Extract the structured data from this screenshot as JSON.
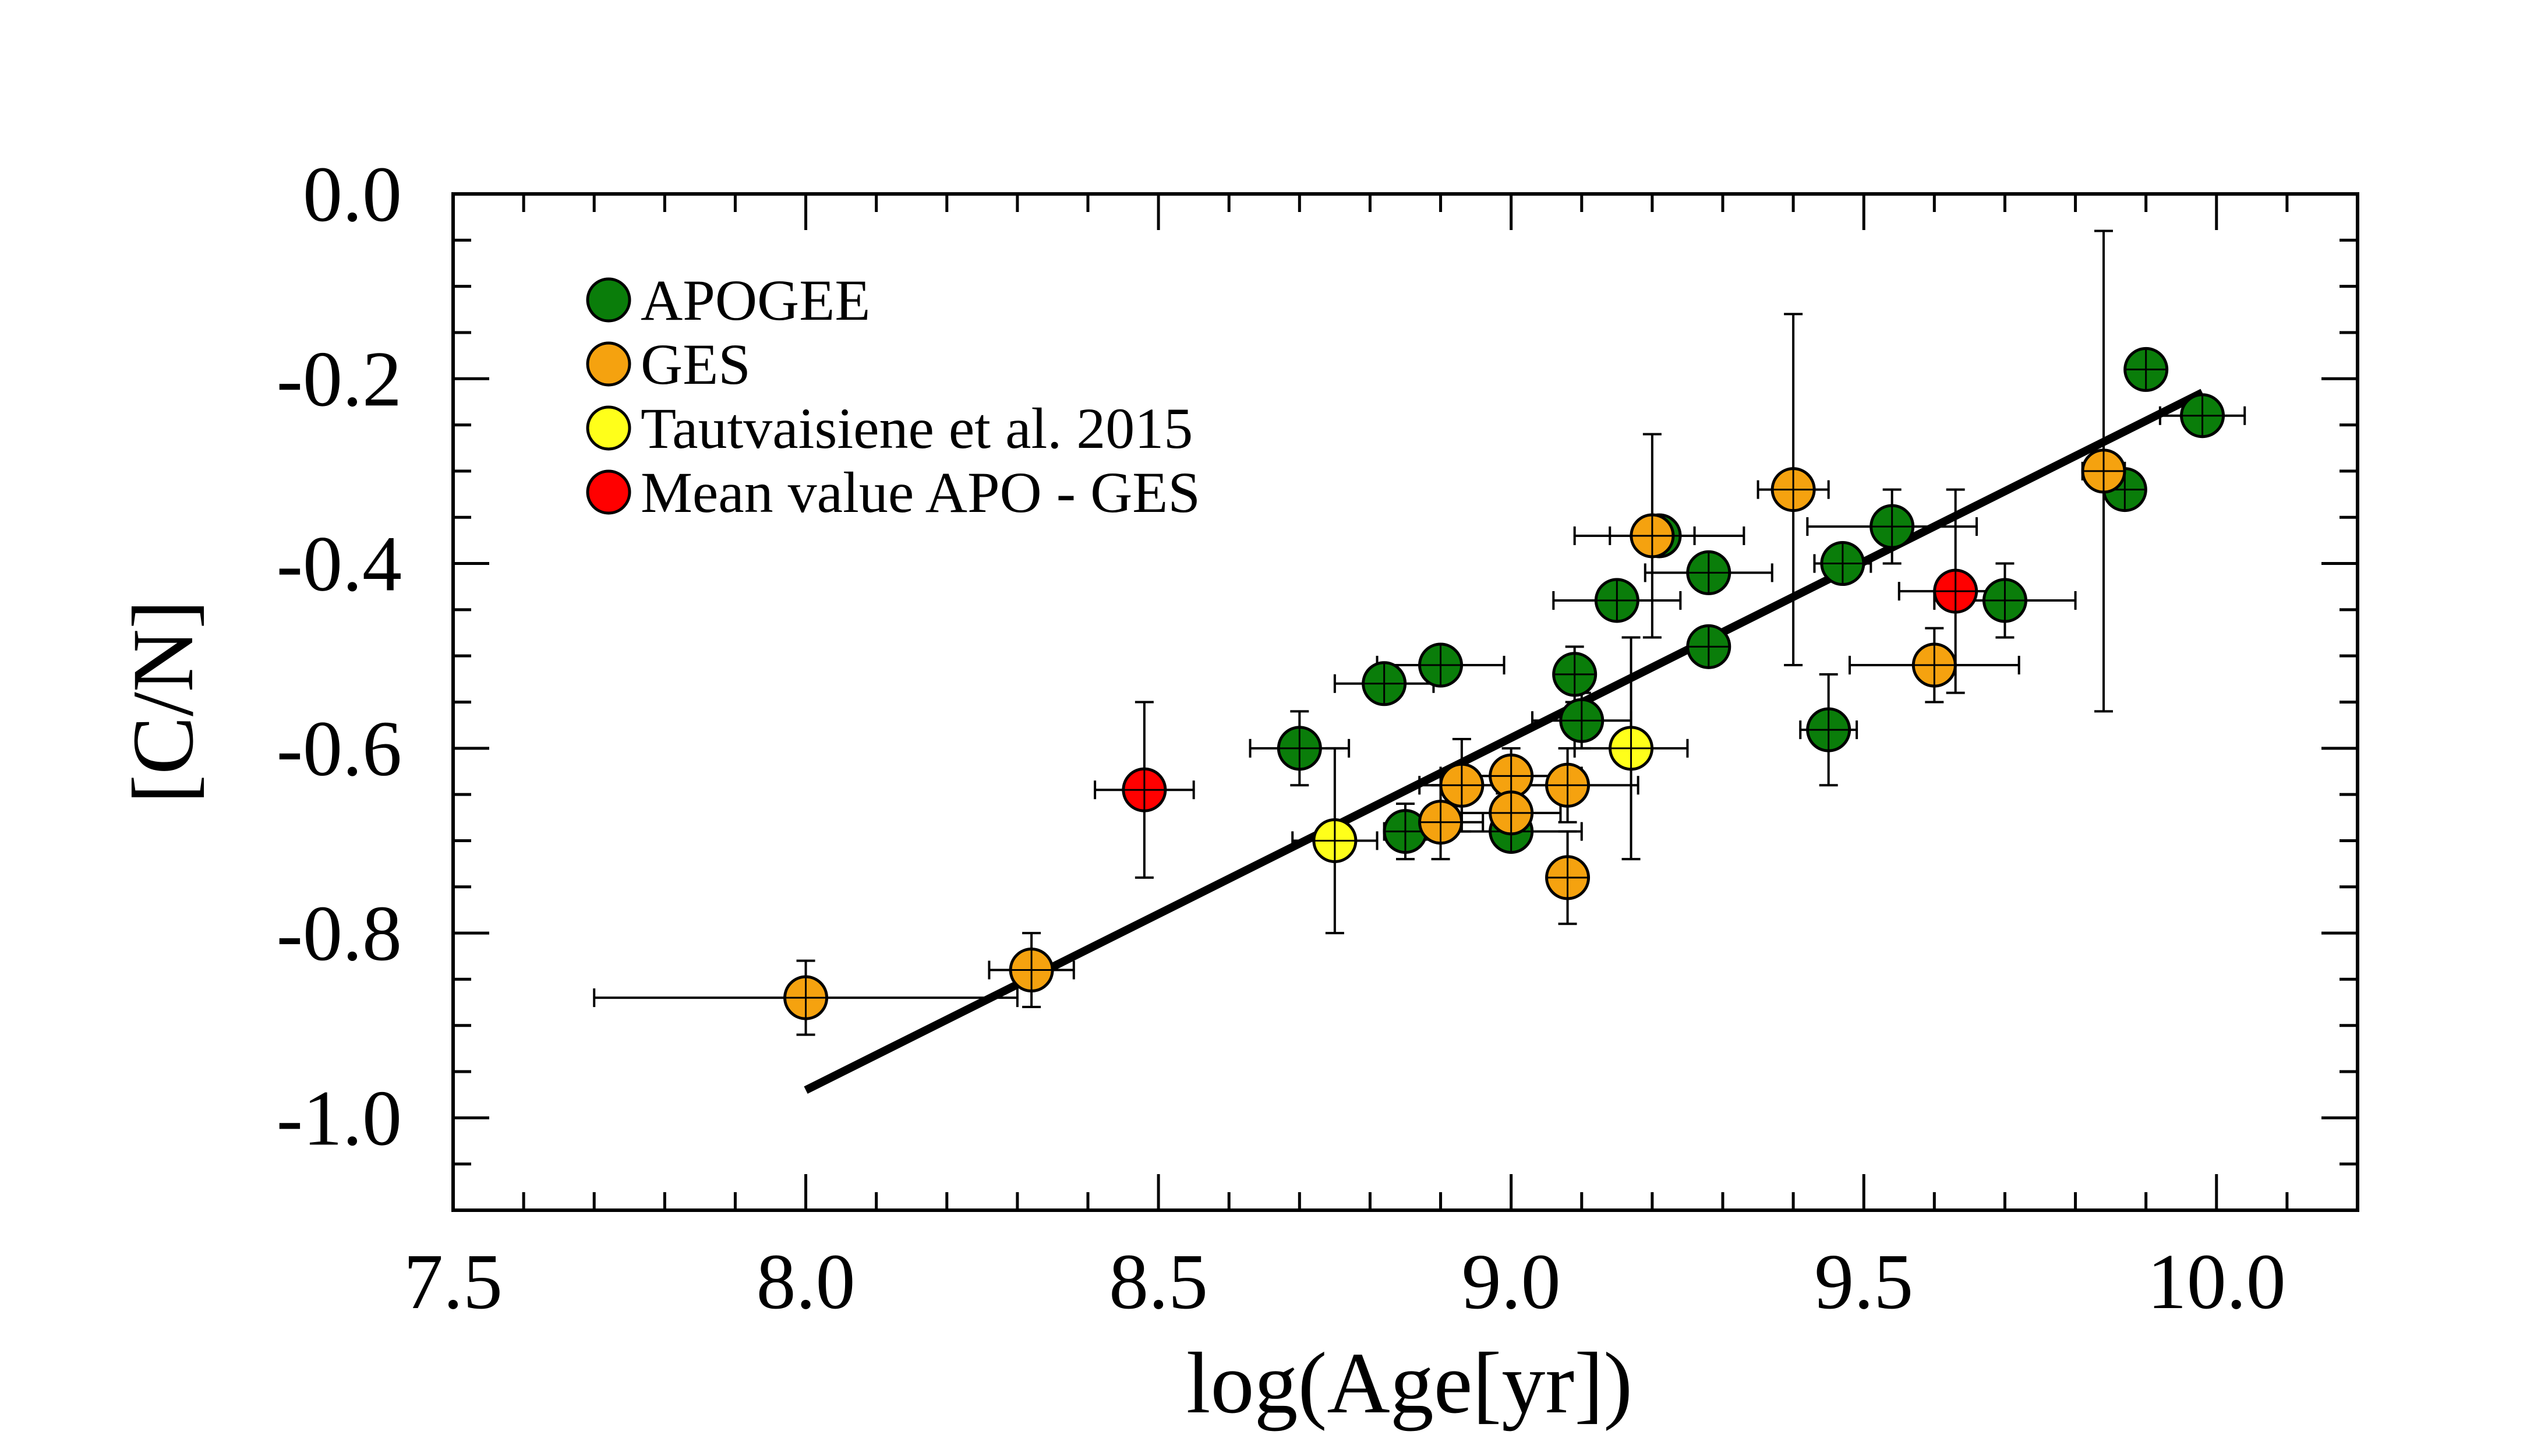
{
  "chart_data": {
    "type": "scatter",
    "title": "",
    "xlabel": "log(Age[yr])",
    "ylabel": "[C/N]",
    "xlim": [
      7.5,
      10.2
    ],
    "ylim": [
      -1.1,
      0.0
    ],
    "x_ticks": [
      {
        "value": 7.5,
        "label": "7.5"
      },
      {
        "value": 8.0,
        "label": "8.0"
      },
      {
        "value": 8.5,
        "label": "8.5"
      },
      {
        "value": 9.0,
        "label": "9.0"
      },
      {
        "value": 9.5,
        "label": "9.5"
      },
      {
        "value": 10.0,
        "label": "10.0"
      }
    ],
    "y_ticks": [
      {
        "value": 0.0,
        "label": "0.0"
      },
      {
        "value": -0.2,
        "label": "-0.2"
      },
      {
        "value": -0.4,
        "label": "-0.4"
      },
      {
        "value": -0.6,
        "label": "-0.6"
      },
      {
        "value": -0.8,
        "label": "-0.8"
      },
      {
        "value": -1.0,
        "label": "-1.0"
      }
    ],
    "x_minor_step": 0.1,
    "y_minor_step": 0.05,
    "grid": false,
    "legend_position": "top-left",
    "series": [
      {
        "name": "APOGEE",
        "color": "#0a7d0a",
        "points": [
          {
            "x": 8.7,
            "y": -0.6,
            "xerr": 0.07,
            "yerr": 0.04
          },
          {
            "x": 8.82,
            "y": -0.53,
            "xerr": 0.07,
            "yerr": 0.02
          },
          {
            "x": 8.9,
            "y": -0.51,
            "xerr": 0.09,
            "yerr": 0.02
          },
          {
            "x": 8.85,
            "y": -0.69,
            "xerr": 0.03,
            "yerr": 0.03
          },
          {
            "x": 9.0,
            "y": -0.69,
            "xerr": 0.1,
            "yerr": 0.02
          },
          {
            "x": 9.09,
            "y": -0.52,
            "xerr": 0.02,
            "yerr": 0.03
          },
          {
            "x": 9.1,
            "y": -0.57,
            "xerr": 0.07,
            "yerr": 0.03
          },
          {
            "x": 9.15,
            "y": -0.44,
            "xerr": 0.09,
            "yerr": 0.02
          },
          {
            "x": 9.21,
            "y": -0.37,
            "xerr": 0.12,
            "yerr": 0.02
          },
          {
            "x": 9.28,
            "y": -0.41,
            "xerr": 0.09,
            "yerr": 0.02
          },
          {
            "x": 9.28,
            "y": -0.49,
            "xerr": 0.02,
            "yerr": 0.02
          },
          {
            "x": 9.45,
            "y": -0.58,
            "xerr": 0.04,
            "yerr": 0.06
          },
          {
            "x": 9.47,
            "y": -0.4,
            "xerr": 0.04,
            "yerr": 0.02
          },
          {
            "x": 9.54,
            "y": -0.36,
            "xerr": 0.12,
            "yerr": 0.04
          },
          {
            "x": 9.7,
            "y": -0.44,
            "xerr": 0.1,
            "yerr": 0.04
          },
          {
            "x": 9.87,
            "y": -0.32,
            "xerr": 0.02,
            "yerr": 0.02
          },
          {
            "x": 9.9,
            "y": -0.19,
            "xerr": 0.02,
            "yerr": 0.01
          },
          {
            "x": 9.98,
            "y": -0.24,
            "xerr": 0.06,
            "yerr": 0.02
          }
        ]
      },
      {
        "name": "GES",
        "color": "#f5a20f",
        "points": [
          {
            "x": 8.0,
            "y": -0.87,
            "xerr": 0.3,
            "yerr": 0.04
          },
          {
            "x": 8.32,
            "y": -0.84,
            "xerr": 0.06,
            "yerr": 0.04
          },
          {
            "x": 8.9,
            "y": -0.68,
            "xerr": 0.06,
            "yerr": 0.04
          },
          {
            "x": 8.93,
            "y": -0.64,
            "xerr": 0.06,
            "yerr": 0.05
          },
          {
            "x": 9.0,
            "y": -0.63,
            "xerr": 0.1,
            "yerr": 0.03
          },
          {
            "x": 9.0,
            "y": -0.67,
            "xerr": 0.07,
            "yerr": 0.04
          },
          {
            "x": 9.08,
            "y": -0.64,
            "xerr": 0.1,
            "yerr": 0.04
          },
          {
            "x": 9.08,
            "y": -0.74,
            "xerr": 0.02,
            "yerr": 0.05
          },
          {
            "x": 9.2,
            "y": -0.37,
            "xerr": 0.06,
            "yerr": 0.11
          },
          {
            "x": 9.4,
            "y": -0.32,
            "xerr": 0.05,
            "yerr": 0.19
          },
          {
            "x": 9.6,
            "y": -0.51,
            "xerr": 0.12,
            "yerr": 0.04
          },
          {
            "x": 9.84,
            "y": -0.3,
            "xerr": 0.03,
            "yerr": 0.26
          }
        ]
      },
      {
        "name": "Tautvaisiene et al. 2015",
        "color": "#ffff1a",
        "points": [
          {
            "x": 8.75,
            "y": -0.7,
            "xerr": 0.06,
            "yerr": 0.1
          },
          {
            "x": 9.17,
            "y": -0.6,
            "xerr": 0.08,
            "yerr": 0.12
          }
        ]
      },
      {
        "name": "Mean value APO - GES",
        "color": "#ff0000",
        "points": [
          {
            "x": 8.48,
            "y": -0.645,
            "xerr": 0.07,
            "yerr": 0.095
          },
          {
            "x": 9.63,
            "y": -0.43,
            "xerr": 0.08,
            "yerr": 0.11
          }
        ]
      }
    ],
    "fit_line": {
      "x": [
        8.0,
        9.98
      ],
      "y": [
        -0.97,
        -0.215
      ],
      "color": "#000000"
    }
  }
}
